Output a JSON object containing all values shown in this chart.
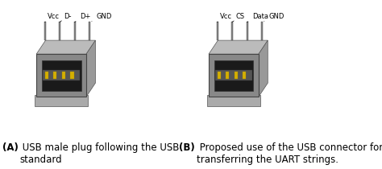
{
  "fig_width": 4.74,
  "fig_height": 2.1,
  "dpi": 100,
  "bg_color": "#ffffff",
  "left_caption_bold": "(A)",
  "left_caption_normal": " USB male plug following the USB\nstandard",
  "right_caption_bold": "(B)",
  "right_caption_normal": " Proposed use of the USB connector for\ntransferring the UART strings.",
  "left_pins": [
    "Vcc",
    "D-",
    "D+",
    "GND"
  ],
  "right_pins": [
    "Vcc",
    "CS",
    "Data",
    "GND"
  ],
  "caption_fontsize": 8.5,
  "pin_fontsize": 7.0
}
